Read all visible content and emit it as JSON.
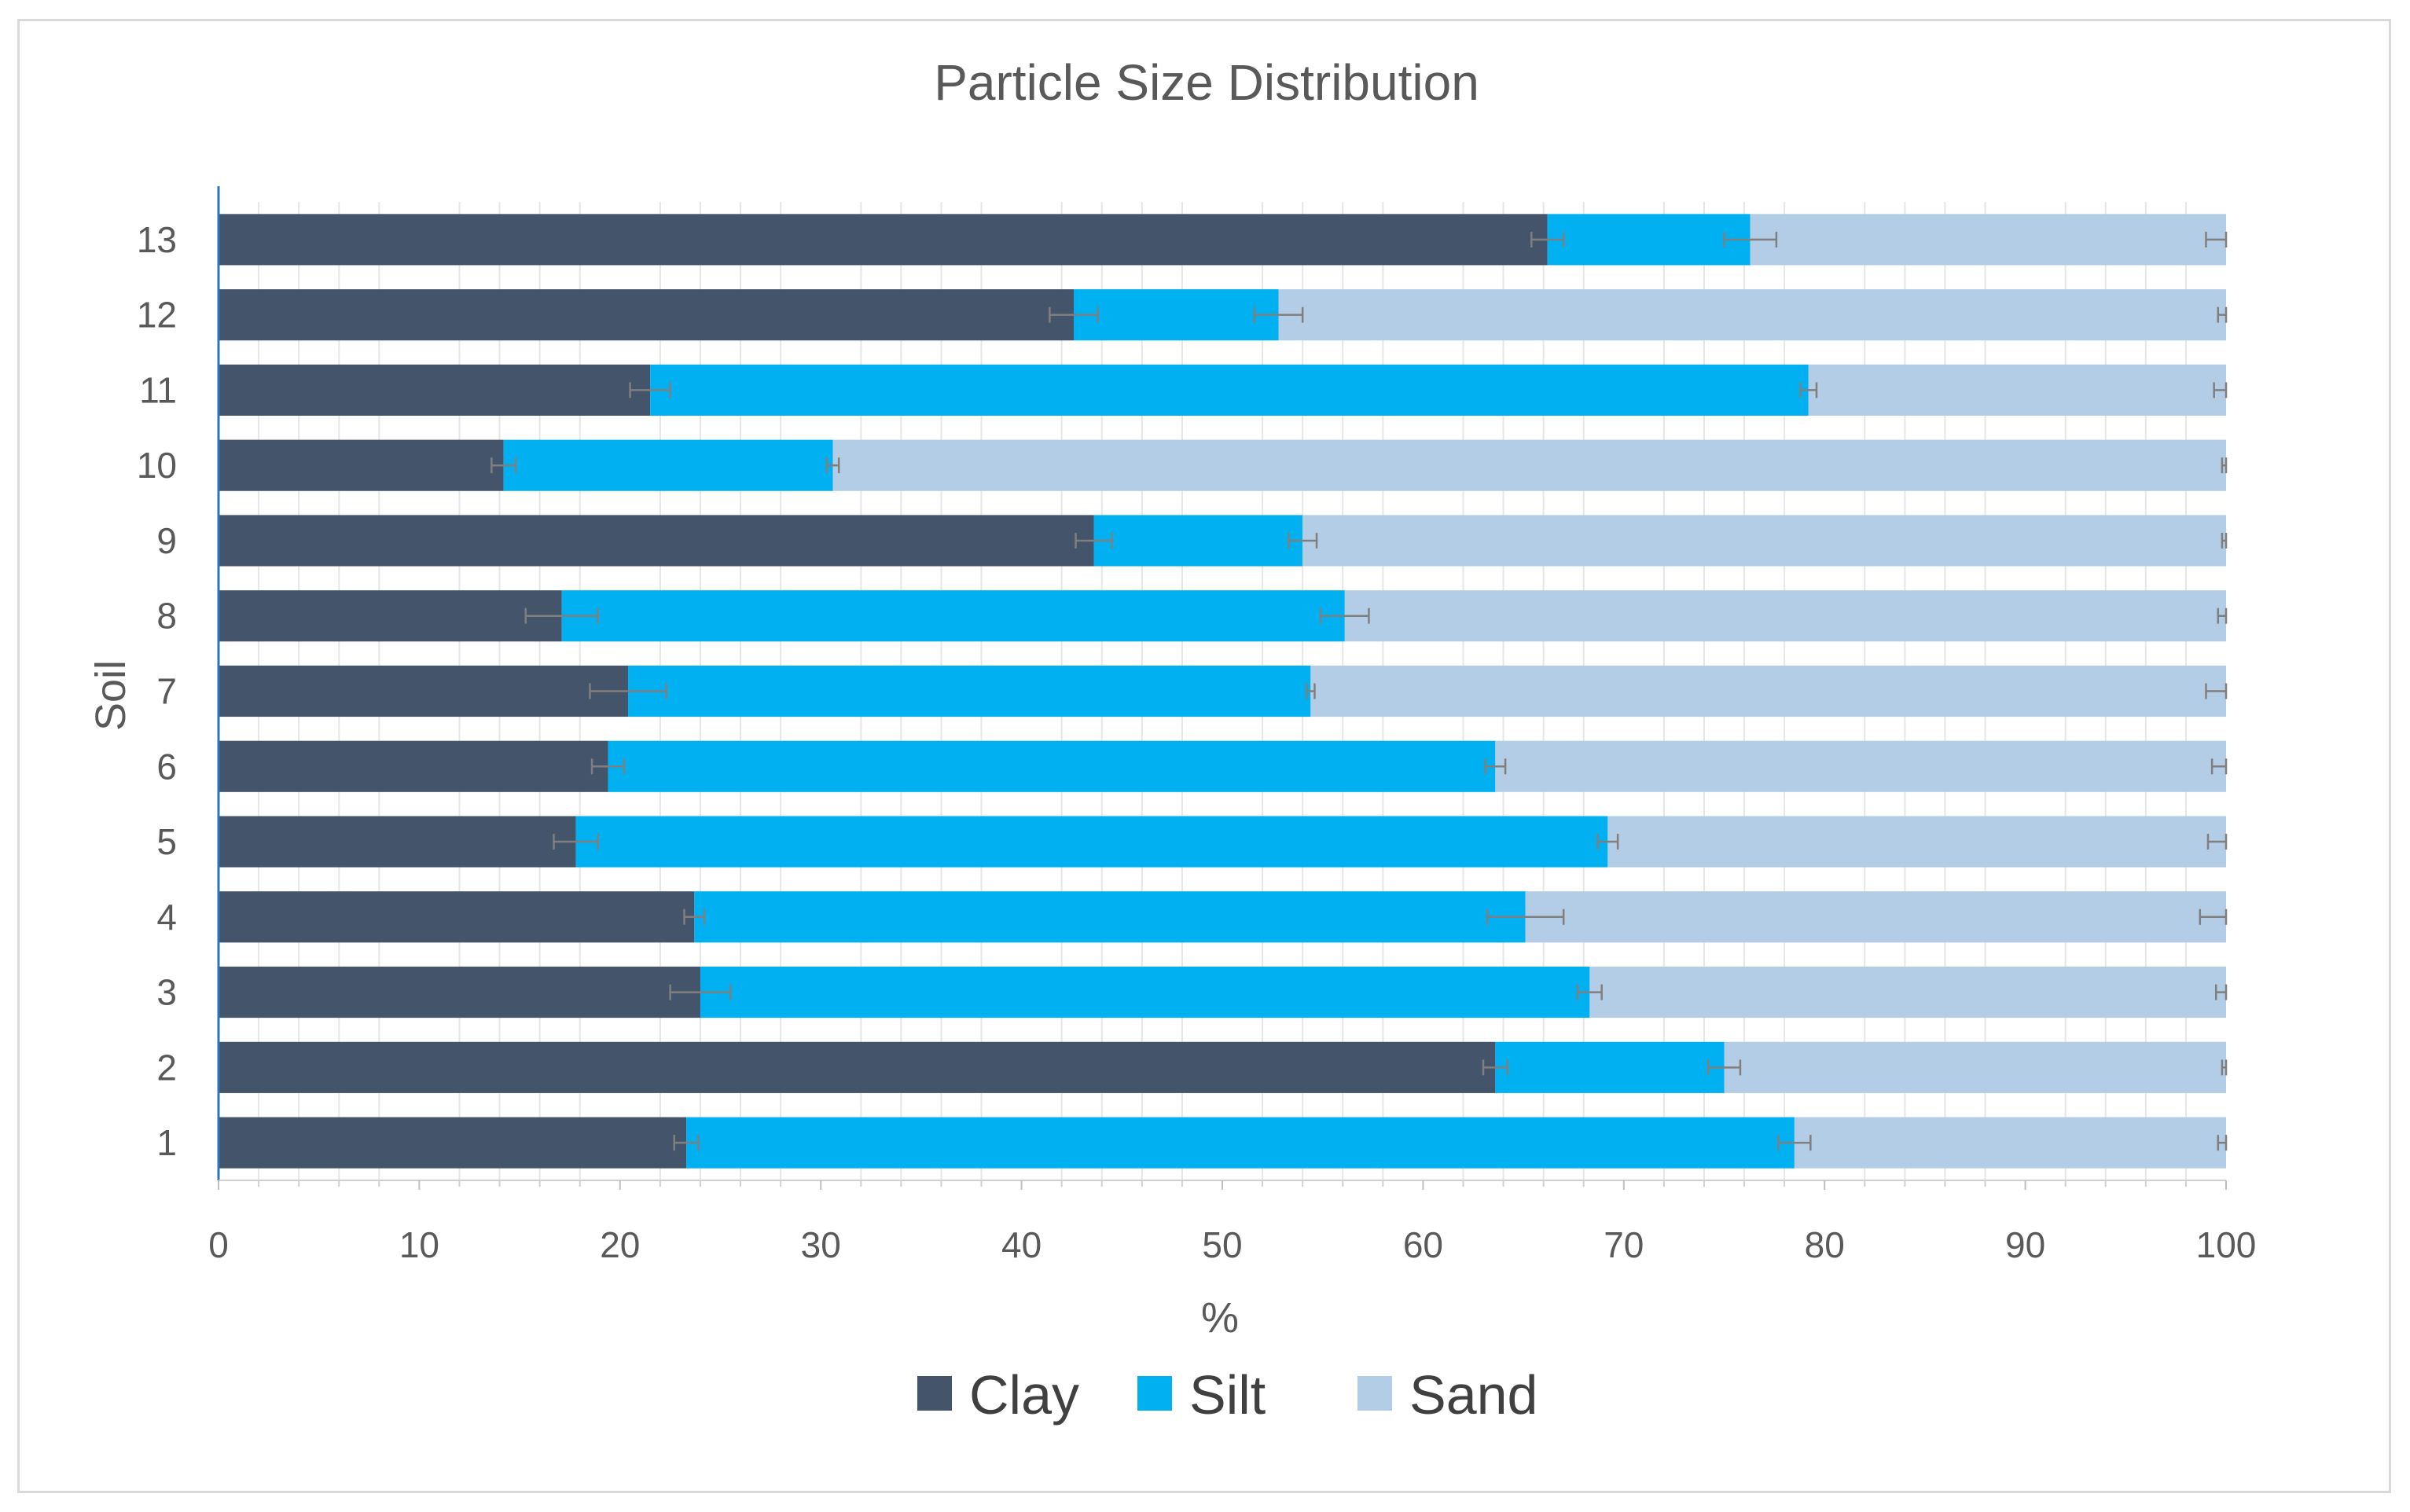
{
  "chart_data": {
    "type": "bar",
    "orientation": "horizontal",
    "stacked": true,
    "title": "Particle Size Distribution",
    "xlabel": "%",
    "ylabel": "Soil",
    "xlim": [
      0,
      100
    ],
    "x_ticks": [
      "0",
      "10",
      "20",
      "30",
      "40",
      "50",
      "60",
      "70",
      "80",
      "90",
      "100"
    ],
    "categories": [
      "1",
      "2",
      "3",
      "4",
      "5",
      "6",
      "7",
      "8",
      "9",
      "10",
      "11",
      "12",
      "13"
    ],
    "legend_position": "bottom",
    "grid": "vertical minor gridlines",
    "series": [
      {
        "name": "Clay",
        "color": "#44546A",
        "values": [
          23.3,
          63.6,
          24.0,
          23.7,
          17.8,
          19.4,
          20.4,
          17.1,
          43.6,
          14.2,
          21.5,
          42.6,
          66.2
        ],
        "errors": [
          0.6,
          0.6,
          1.5,
          0.5,
          1.1,
          0.8,
          1.9,
          1.8,
          0.9,
          0.6,
          1.0,
          1.2,
          0.8
        ]
      },
      {
        "name": "Silt",
        "color": "#00B0F0",
        "values": [
          55.2,
          11.4,
          44.3,
          41.4,
          51.4,
          44.2,
          34.0,
          39.0,
          10.4,
          16.4,
          57.7,
          10.2,
          10.1
        ],
        "errors": [
          0.8,
          0.8,
          0.6,
          1.9,
          0.5,
          0.5,
          0.2,
          1.2,
          0.7,
          0.3,
          0.4,
          1.2,
          1.3
        ]
      },
      {
        "name": "Sand",
        "color": "#B4CDE6",
        "values": [
          21.5,
          25.0,
          31.7,
          34.9,
          30.8,
          36.4,
          45.6,
          43.9,
          46.0,
          69.4,
          20.8,
          47.2,
          23.7
        ],
        "errors": [
          0.4,
          0.2,
          0.5,
          1.3,
          0.9,
          0.7,
          1.0,
          0.4,
          0.2,
          0.2,
          0.6,
          0.4,
          1.0
        ]
      }
    ]
  }
}
